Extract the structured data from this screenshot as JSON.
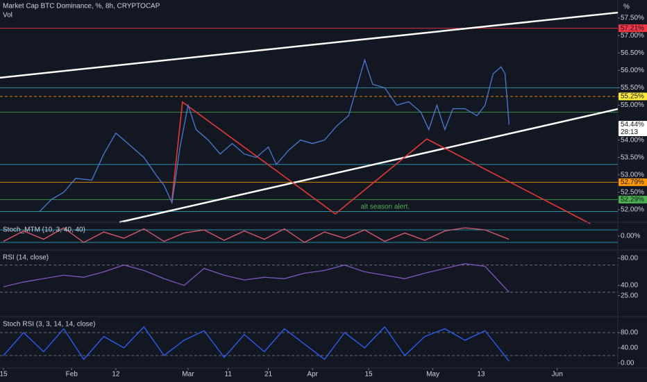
{
  "chart_data": [
    {
      "type": "line",
      "title": "Market Cap BTC Dominance, %, 8h, CRYPTOCAP",
      "subtitle": "Vol",
      "axis_unit": "%",
      "color": "#4a7bd8",
      "x": [
        9,
        12,
        15,
        18,
        22,
        25,
        28,
        31,
        35,
        38,
        40,
        42,
        44,
        46,
        48,
        51,
        54,
        57,
        60,
        63,
        66,
        68,
        71,
        74,
        77,
        80,
        83,
        86,
        88,
        90,
        92,
        95,
        98,
        101,
        104,
        106,
        108,
        110,
        112,
        115,
        118,
        120,
        122,
        124,
        125,
        126
      ],
      "values": [
        51.95,
        52.3,
        52.5,
        52.9,
        52.85,
        53.6,
        54.2,
        53.9,
        53.5,
        53.0,
        52.7,
        52.2,
        53.8,
        55.0,
        54.3,
        54.0,
        53.6,
        53.9,
        53.6,
        53.5,
        53.8,
        53.3,
        53.7,
        54.0,
        53.9,
        54.0,
        54.4,
        54.7,
        55.5,
        56.3,
        55.6,
        55.5,
        55.0,
        55.1,
        54.8,
        54.3,
        55.0,
        54.3,
        54.9,
        54.9,
        54.7,
        55.0,
        55.9,
        56.1,
        55.9,
        54.44
      ],
      "xlim": [
        -0.87,
        153.1
      ],
      "ylim": [
        51.64,
        58.02
      ],
      "xticks": [
        {
          "value": 0,
          "label": "15"
        },
        {
          "value": 17,
          "label": "Feb"
        },
        {
          "value": 28,
          "label": "12"
        },
        {
          "value": 46,
          "label": "Mar"
        },
        {
          "value": 56,
          "label": "11"
        },
        {
          "value": 66,
          "label": "21"
        },
        {
          "value": 77,
          "label": "Apr"
        },
        {
          "value": 91,
          "label": "15"
        },
        {
          "value": 107,
          "label": "May"
        },
        {
          "value": 119,
          "label": "13"
        },
        {
          "value": 138,
          "label": "Jun"
        }
      ],
      "yticks": [
        {
          "value": 57.5,
          "label": "57.50%"
        },
        {
          "value": 57.0,
          "label": "57.00%"
        },
        {
          "value": 56.5,
          "label": "56.50%"
        },
        {
          "value": 56.0,
          "label": "56.00%"
        },
        {
          "value": 55.5,
          "label": "55.50%"
        },
        {
          "value": 55.0,
          "label": "55.00%"
        },
        {
          "value": 54.0,
          "label": "54.00%"
        },
        {
          "value": 53.5,
          "label": "53.50%"
        },
        {
          "value": 53.0,
          "label": "53.00%"
        },
        {
          "value": 52.5,
          "label": "52.50%"
        },
        {
          "value": 52.0,
          "label": "52.00%"
        }
      ],
      "levels": [
        {
          "value": 57.21,
          "color": "#f23645"
        },
        {
          "value": 55.5,
          "color": "#26a5b8"
        },
        {
          "value": 55.25,
          "color": "#ff9800",
          "dashed": true
        },
        {
          "value": 54.8,
          "color": "#3fa34d"
        },
        {
          "value": 53.3,
          "color": "#26a5b8"
        },
        {
          "value": 52.79,
          "color": "#ff9800"
        },
        {
          "value": 52.29,
          "color": "#3fa34d"
        },
        {
          "value": 51.95,
          "color": "#26a5b8"
        }
      ],
      "tags": [
        {
          "value": 57.21,
          "label": "57.21%",
          "color": "#f23645"
        },
        {
          "value": 55.25,
          "label": "55.25%",
          "color": "#ffeb3b"
        },
        {
          "value": 54.44,
          "label": "54.44%",
          "sub": "28:13",
          "color": "#ffffff"
        },
        {
          "value": 52.79,
          "label": "52.79%",
          "color": "#ff9800"
        },
        {
          "value": 52.29,
          "label": "52.29%",
          "color": "#4caf50"
        }
      ],
      "trendlines": [
        {
          "color": "#ffffff",
          "x": [
            -0.87,
            153.1
          ],
          "values": [
            55.79,
            57.66
          ]
        },
        {
          "color": "#ffffff",
          "x": [
            28.9,
            153.1
          ],
          "values": [
            51.64,
            54.89
          ]
        },
        {
          "color": "#e53935",
          "x": [
            41.9,
            44.6,
            71.8,
            82.7,
            105.5,
            146.2
          ],
          "values": [
            52.2,
            55.09,
            52.8,
            51.88,
            54.03,
            51.6
          ]
        }
      ],
      "annotations": [
        {
          "x": 89,
          "value": 52.08,
          "text": "alt season alert."
        }
      ]
    },
    {
      "type": "line",
      "title": "Stoch_MTM (10, 3, 40, 40)",
      "color": "#e05a6a",
      "x": [
        0,
        5,
        10,
        15,
        20,
        25,
        30,
        35,
        40,
        45,
        50,
        55,
        60,
        65,
        70,
        75,
        80,
        85,
        90,
        95,
        100,
        105,
        110,
        115,
        120,
        126
      ],
      "values": [
        -0.5,
        0.5,
        -0.3,
        0.8,
        -0.6,
        0.4,
        -0.2,
        0.7,
        -0.5,
        0.3,
        0.6,
        -0.4,
        0.5,
        -0.3,
        0.7,
        -0.6,
        0.4,
        -0.2,
        0.6,
        -0.5,
        0.3,
        -0.4,
        0.5,
        0.8,
        0.6,
        -0.3
      ],
      "xlim": [
        -0.87,
        153.1
      ],
      "ylim": [
        -1.2,
        1.2
      ],
      "yticks": [
        {
          "value": 0,
          "label": "0.00%"
        }
      ],
      "levels": [
        {
          "value": 0.6,
          "color": "#26a5b8"
        },
        {
          "value": -0.6,
          "color": "#26a5b8"
        }
      ]
    },
    {
      "type": "line",
      "title": "RSI (14, close)",
      "color": "#7e57c2",
      "x": [
        0,
        5,
        10,
        15,
        20,
        25,
        30,
        35,
        40,
        45,
        50,
        55,
        60,
        65,
        70,
        75,
        80,
        85,
        90,
        95,
        100,
        105,
        110,
        115,
        120,
        126
      ],
      "values": [
        38,
        45,
        50,
        55,
        52,
        60,
        70,
        62,
        50,
        40,
        65,
        55,
        48,
        52,
        50,
        58,
        62,
        70,
        60,
        55,
        50,
        58,
        65,
        72,
        68,
        30
      ],
      "xlim": [
        -0.87,
        153.1
      ],
      "ylim": [
        -5,
        90
      ],
      "yticks": [
        {
          "value": 80,
          "label": "80.00"
        },
        {
          "value": 40,
          "label": "40.00"
        },
        {
          "value": 25,
          "label": "25.00"
        }
      ],
      "levels": [
        {
          "value": 70,
          "color": "#787b86",
          "dashed": true
        },
        {
          "value": 30,
          "color": "#787b86",
          "dashed": true
        }
      ]
    },
    {
      "type": "line",
      "title": "Stoch RSI (3, 3, 14, 14, close)",
      "color": "#2962ff",
      "x": [
        0,
        5,
        10,
        15,
        20,
        25,
        30,
        35,
        40,
        45,
        50,
        55,
        60,
        65,
        70,
        75,
        80,
        85,
        90,
        95,
        100,
        105,
        110,
        115,
        120,
        126
      ],
      "values": [
        20,
        80,
        30,
        90,
        10,
        70,
        40,
        95,
        20,
        60,
        85,
        15,
        75,
        30,
        90,
        50,
        10,
        80,
        40,
        95,
        20,
        70,
        90,
        60,
        85,
        5
      ],
      "xlim": [
        -0.87,
        153.1
      ],
      "ylim": [
        -13,
        118
      ],
      "yticks": [
        {
          "value": 80,
          "label": "80.00"
        },
        {
          "value": 40,
          "label": "40.00"
        },
        {
          "value": 0,
          "label": "0.00"
        }
      ],
      "levels": [
        {
          "value": 80,
          "color": "#787b86",
          "dashed": true
        },
        {
          "value": 20,
          "color": "#787b86",
          "dashed": true
        }
      ]
    }
  ]
}
